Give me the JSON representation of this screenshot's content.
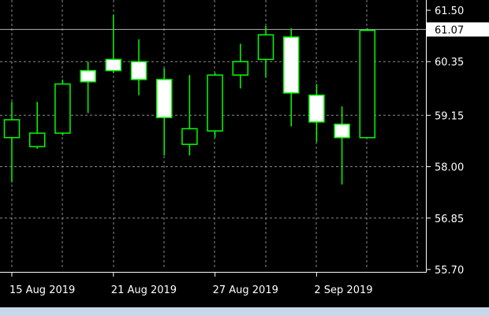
{
  "chart_data": {
    "type": "candlestick",
    "x_labels": [
      {
        "index": 0,
        "text": "15 Aug 2019"
      },
      {
        "index": 4,
        "text": "21 Aug 2019"
      },
      {
        "index": 8,
        "text": "27 Aug 2019"
      },
      {
        "index": 12,
        "text": "2 Sep 2019"
      }
    ],
    "y_ticks": [
      61.5,
      60.35,
      59.15,
      58.0,
      56.85,
      55.7
    ],
    "ylim": [
      55.7,
      61.5
    ],
    "current_price": 61.07,
    "current_price_label": "61.07",
    "grid": true,
    "candles": [
      {
        "open": 58.65,
        "high": 59.45,
        "low": 57.65,
        "close": 59.05
      },
      {
        "open": 58.45,
        "high": 59.45,
        "low": 58.4,
        "close": 58.75
      },
      {
        "open": 58.75,
        "high": 59.95,
        "low": 58.7,
        "close": 59.85
      },
      {
        "open": 60.15,
        "high": 60.35,
        "low": 59.2,
        "close": 59.9
      },
      {
        "open": 60.4,
        "high": 61.4,
        "low": 60.1,
        "close": 60.15
      },
      {
        "open": 60.35,
        "high": 60.85,
        "low": 59.6,
        "close": 59.95
      },
      {
        "open": 59.95,
        "high": 60.2,
        "low": 58.25,
        "close": 59.1
      },
      {
        "open": 58.5,
        "high": 60.05,
        "low": 58.25,
        "close": 58.85
      },
      {
        "open": 58.8,
        "high": 60.1,
        "low": 58.65,
        "close": 60.05
      },
      {
        "open": 60.05,
        "high": 60.75,
        "low": 59.75,
        "close": 60.35
      },
      {
        "open": 60.4,
        "high": 61.15,
        "low": 60.0,
        "close": 60.95
      },
      {
        "open": 60.9,
        "high": 61.1,
        "low": 58.9,
        "close": 59.65
      },
      {
        "open": 59.6,
        "high": 59.85,
        "low": 58.55,
        "close": 59.0
      },
      {
        "open": 58.95,
        "high": 59.35,
        "low": 57.6,
        "close": 58.65
      },
      {
        "open": 58.65,
        "high": 61.1,
        "low": 58.65,
        "close": 61.05
      }
    ]
  },
  "colors": {
    "background": "#000000",
    "grid": "#8a8a8a",
    "axis": "#ffffff",
    "text": "#ffffff",
    "candle_outline": "#00ff00",
    "bull_fill": "#000000",
    "bear_fill": "#ffffff",
    "price_line": "#b4b4b4",
    "price_label_bg": "#ffffff",
    "price_label_text": "#000000"
  }
}
